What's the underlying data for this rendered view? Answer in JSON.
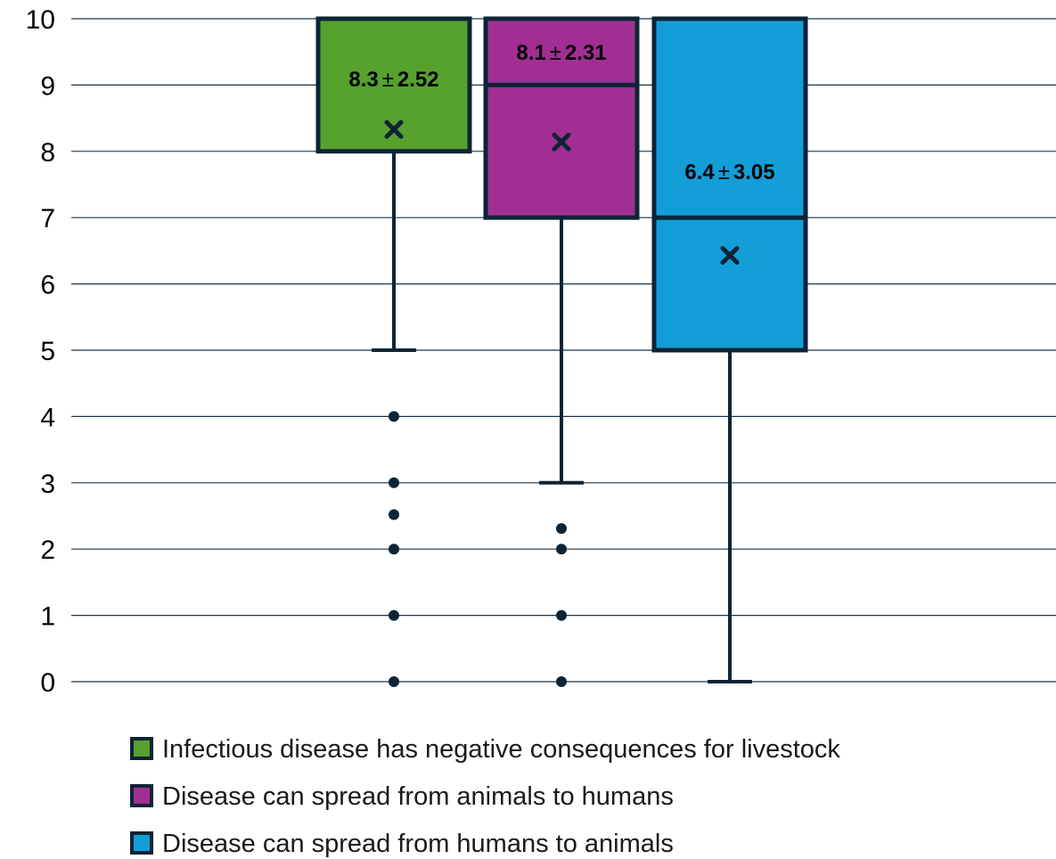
{
  "chart_data": {
    "type": "box",
    "ylim": [
      0,
      10
    ],
    "y_ticks": [
      "0",
      "1",
      "2",
      "3",
      "4",
      "5",
      "6",
      "7",
      "8",
      "9",
      "10"
    ],
    "grid": true,
    "legend_position": "bottom",
    "colors": {
      "outline": "#0d2436",
      "grid": "#1f3446",
      "marker": "#0d2436"
    },
    "series": [
      {
        "name": "Infectious disease has negative consequences for livestock",
        "color": "#57a12e",
        "whisker_low": 5,
        "q1": 8,
        "median": 10,
        "q3": 10,
        "whisker_high": 10,
        "mean": 8.33,
        "outliers": [
          4,
          3,
          2.52,
          2,
          1,
          0
        ],
        "label_mean": "8.3",
        "label_pm": "±",
        "label_sd": "2.52",
        "label_at": 9.1
      },
      {
        "name": "Disease can spread from animals to humans",
        "color": "#a12f93",
        "whisker_low": 3,
        "q1": 7,
        "median": 9,
        "q3": 10,
        "whisker_high": 10,
        "mean": 8.14,
        "outliers": [
          2.31,
          2,
          1,
          0
        ],
        "label_mean": "8.1",
        "label_pm": "±",
        "label_sd": "2.31",
        "label_at": 9.5
      },
      {
        "name": "Disease can spread from humans to animals",
        "color": "#139ed8",
        "whisker_low": 0,
        "q1": 5,
        "median": 7,
        "q3": 10,
        "whisker_high": 10,
        "mean": 6.43,
        "outliers": [],
        "label_mean": "6.4",
        "label_pm": "±",
        "label_sd": "3.05",
        "label_at": 7.7
      }
    ]
  }
}
